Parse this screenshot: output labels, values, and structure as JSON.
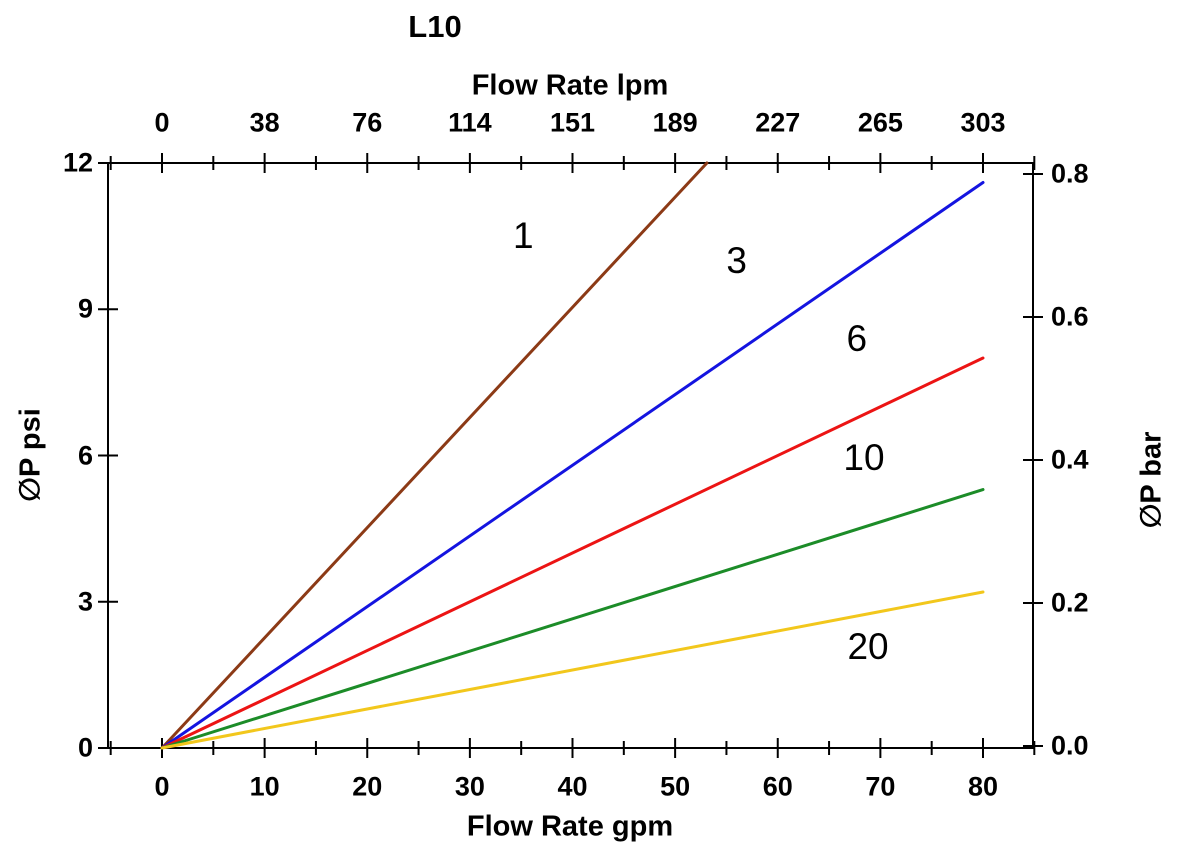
{
  "figure": {
    "title": "L10"
  },
  "chart_data": {
    "type": "line",
    "title": "L10",
    "x_bottom": {
      "label": "Flow Rate gpm",
      "unit": "gpm",
      "range": [
        0,
        80
      ],
      "ticks": [
        0,
        10,
        20,
        30,
        40,
        50,
        60,
        70,
        80
      ],
      "minor_tick_step": 5
    },
    "x_top": {
      "label": "Flow Rate lpm",
      "unit": "lpm",
      "tick_labels": [
        "0",
        "38",
        "76",
        "114",
        "151",
        "189",
        "227",
        "265",
        "303"
      ]
    },
    "y_left": {
      "label": "∅P psi",
      "unit": "psi",
      "range": [
        0,
        12
      ],
      "ticks": [
        0,
        3,
        6,
        9,
        12
      ]
    },
    "y_right": {
      "label": "∅P bar",
      "unit": "bar",
      "range": [
        0,
        0.8
      ],
      "tick_labels": [
        "0.0",
        "0.2",
        "0.4",
        "0.6",
        "0.8"
      ]
    },
    "grid": false,
    "legend": "inline-curve-labels",
    "axis_color": "#000000",
    "background": "#ffffff",
    "series": [
      {
        "name": "1",
        "label": "1",
        "color": "#8c3a16",
        "points": [
          [
            0,
            0
          ],
          [
            53.1,
            12.0
          ]
        ],
        "label_pos": [
          35.2,
          10.5
        ]
      },
      {
        "name": "3",
        "label": "3",
        "color": "#1414e0",
        "points": [
          [
            0,
            0
          ],
          [
            80,
            11.6
          ]
        ],
        "label_pos": [
          56.0,
          10.0
        ]
      },
      {
        "name": "6",
        "label": "6",
        "color": "#ec1414",
        "points": [
          [
            0,
            0
          ],
          [
            80,
            8.0
          ]
        ],
        "label_pos": [
          67.7,
          8.4
        ]
      },
      {
        "name": "10",
        "label": "10",
        "color": "#1c8c28",
        "points": [
          [
            0,
            0
          ],
          [
            80,
            5.3
          ]
        ],
        "label_pos": [
          68.4,
          5.95
        ]
      },
      {
        "name": "20",
        "label": "20",
        "color": "#f2c71c",
        "points": [
          [
            0,
            0
          ],
          [
            80,
            3.2
          ]
        ],
        "label_pos": [
          68.8,
          2.07
        ]
      }
    ]
  }
}
